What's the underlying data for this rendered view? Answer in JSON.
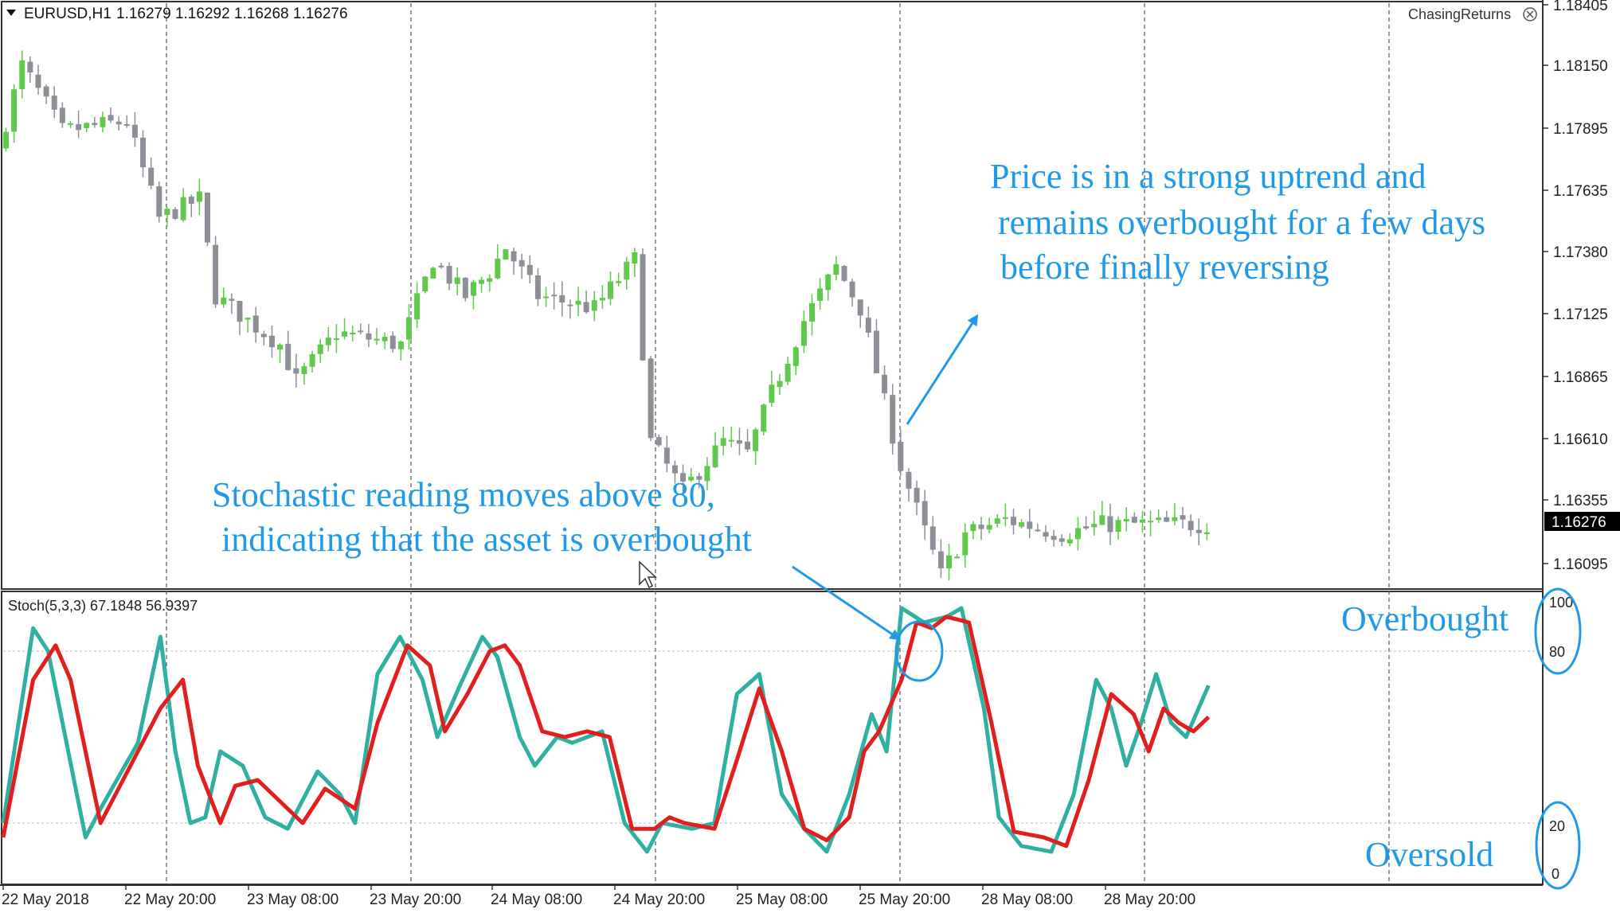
{
  "window": {
    "title_symbol": "EURUSD,H1",
    "ohlc_values": "1.16279 1.16292 1.16268 1.16276",
    "watermark": "ChasingReturns"
  },
  "price_axis": {
    "labels": [
      "1.18405",
      "1.18150",
      "1.17895",
      "1.17635",
      "1.17380",
      "1.17125",
      "1.16865",
      "1.16610",
      "1.16355",
      "1.16095"
    ],
    "current_price": "1.16276"
  },
  "time_axis": {
    "labels": [
      "22 May 2018",
      "22 May 20:00",
      "23 May 08:00",
      "23 May 20:00",
      "24 May 08:00",
      "24 May 20:00",
      "25 May 08:00",
      "25 May 20:00",
      "28 May 08:00",
      "28 May 20:00"
    ]
  },
  "indicator": {
    "label": "Stoch(5,3,3) 67.1848 56.9397",
    "levels": [
      "100",
      "80",
      "20",
      "0"
    ]
  },
  "annotations": {
    "uptrend_line1": "Price is in a strong uptrend and",
    "uptrend_line2": "remains overbought for a few days",
    "uptrend_line3": "before finally reversing",
    "stoch_line1": "Stochastic reading moves above 80,",
    "stoch_line2": "indicating that the asset is overbought",
    "overbought_label": "Overbought",
    "oversold_label": "Oversold"
  },
  "colors": {
    "bull_candle": "#5ec94a",
    "bear_candle": "#8c8f96",
    "stoch_main": "#2fb0a3",
    "stoch_signal": "#e21f1f",
    "annotation": "#1f9ae8",
    "price_tag_bg": "#000000"
  },
  "chart_data": [
    {
      "type": "candlestick",
      "symbol": "EURUSD",
      "timeframe": "H1",
      "ylim": [
        1.16,
        1.184
      ],
      "y_ticks": [
        1.18405,
        1.1815,
        1.17895,
        1.17635,
        1.1738,
        1.17125,
        1.16865,
        1.1661,
        1.16355,
        1.16095
      ],
      "current_price": 1.16276,
      "anchors": [
        [
          0,
          1.178
        ],
        [
          3,
          1.1815
        ],
        [
          8,
          1.1788
        ],
        [
          16,
          1.1792
        ],
        [
          20,
          1.1752
        ],
        [
          25,
          1.176
        ],
        [
          27,
          1.172
        ],
        [
          35,
          1.17
        ],
        [
          37,
          1.1685
        ],
        [
          42,
          1.1705
        ],
        [
          50,
          1.17
        ],
        [
          54,
          1.1735
        ],
        [
          58,
          1.172
        ],
        [
          61,
          1.173
        ],
        [
          63,
          1.174
        ],
        [
          67,
          1.172
        ],
        [
          74,
          1.1715
        ],
        [
          79,
          1.1735
        ],
        [
          81,
          1.166
        ],
        [
          85,
          1.164
        ],
        [
          90,
          1.166
        ],
        [
          93,
          1.1655
        ],
        [
          96,
          1.168
        ],
        [
          100,
          1.171
        ],
        [
          104,
          1.1732
        ],
        [
          107,
          1.1715
        ],
        [
          112,
          1.165
        ],
        [
          117,
          1.1605
        ],
        [
          120,
          1.1622
        ],
        [
          125,
          1.1628
        ],
        [
          132,
          1.1622
        ],
        [
          137,
          1.1626
        ]
      ]
    },
    {
      "type": "line",
      "name_label": "Stoch(5,3,3)",
      "ylim": [
        0,
        100
      ],
      "levels": [
        20,
        80
      ],
      "last_values": {
        "main": 67.1848,
        "signal": 56.9397
      },
      "series": [
        {
          "key": "main",
          "values_anchors": [
            [
              0,
              20
            ],
            [
              4,
              88
            ],
            [
              6,
              80
            ],
            [
              11,
              15
            ],
            [
              13,
              25
            ],
            [
              18,
              48
            ],
            [
              21,
              85
            ],
            [
              23,
              45
            ],
            [
              25,
              20
            ],
            [
              27,
              22
            ],
            [
              29,
              45
            ],
            [
              32,
              40
            ],
            [
              35,
              22
            ],
            [
              38,
              18
            ],
            [
              42,
              38
            ],
            [
              45,
              30
            ],
            [
              47,
              20
            ],
            [
              50,
              72
            ],
            [
              53,
              85
            ],
            [
              56,
              70
            ],
            [
              58,
              50
            ],
            [
              61,
              68
            ],
            [
              64,
              85
            ],
            [
              66,
              78
            ],
            [
              69,
              50
            ],
            [
              71,
              40
            ],
            [
              74,
              50
            ],
            [
              76,
              48
            ],
            [
              80,
              52
            ],
            [
              83,
              20
            ],
            [
              86,
              10
            ],
            [
              88,
              20
            ],
            [
              92,
              18
            ],
            [
              95,
              20
            ],
            [
              98,
              65
            ],
            [
              101,
              72
            ],
            [
              104,
              30
            ],
            [
              107,
              18
            ],
            [
              110,
              10
            ],
            [
              113,
              30
            ],
            [
              116,
              58
            ],
            [
              118,
              45
            ],
            [
              120,
              95
            ],
            [
              123,
              90
            ],
            [
              126,
              92
            ],
            [
              128,
              95
            ],
            [
              131,
              60
            ],
            [
              133,
              22
            ],
            [
              136,
              12
            ],
            [
              140,
              10
            ],
            [
              143,
              30
            ],
            [
              146,
              70
            ],
            [
              148,
              60
            ],
            [
              150,
              40
            ],
            [
              152,
              55
            ],
            [
              154,
              72
            ],
            [
              156,
              55
            ],
            [
              158,
              50
            ],
            [
              161,
              68
            ]
          ]
        },
        {
          "key": "signal",
          "values_anchors": [
            [
              0,
              15
            ],
            [
              4,
              70
            ],
            [
              7,
              82
            ],
            [
              9,
              70
            ],
            [
              13,
              20
            ],
            [
              16,
              35
            ],
            [
              21,
              60
            ],
            [
              24,
              70
            ],
            [
              26,
              40
            ],
            [
              29,
              20
            ],
            [
              31,
              33
            ],
            [
              34,
              35
            ],
            [
              36,
              30
            ],
            [
              40,
              20
            ],
            [
              43,
              32
            ],
            [
              47,
              25
            ],
            [
              50,
              55
            ],
            [
              54,
              82
            ],
            [
              57,
              75
            ],
            [
              59,
              52
            ],
            [
              62,
              65
            ],
            [
              65,
              80
            ],
            [
              67,
              82
            ],
            [
              69,
              75
            ],
            [
              72,
              52
            ],
            [
              75,
              50
            ],
            [
              78,
              52
            ],
            [
              81,
              50
            ],
            [
              84,
              18
            ],
            [
              87,
              18
            ],
            [
              89,
              22
            ],
            [
              91,
              20
            ],
            [
              95,
              18
            ],
            [
              98,
              42
            ],
            [
              101,
              67
            ],
            [
              104,
              45
            ],
            [
              107,
              18
            ],
            [
              110,
              14
            ],
            [
              113,
              22
            ],
            [
              115,
              45
            ],
            [
              117,
              52
            ],
            [
              120,
              70
            ],
            [
              122,
              90
            ],
            [
              124,
              88
            ],
            [
              126,
              92
            ],
            [
              129,
              90
            ],
            [
              132,
              55
            ],
            [
              135,
              17
            ],
            [
              139,
              15
            ],
            [
              142,
              12
            ],
            [
              145,
              35
            ],
            [
              148,
              65
            ],
            [
              151,
              58
            ],
            [
              153,
              45
            ],
            [
              155,
              60
            ],
            [
              157,
              55
            ],
            [
              159,
              52
            ],
            [
              161,
              57
            ]
          ]
        }
      ]
    }
  ]
}
